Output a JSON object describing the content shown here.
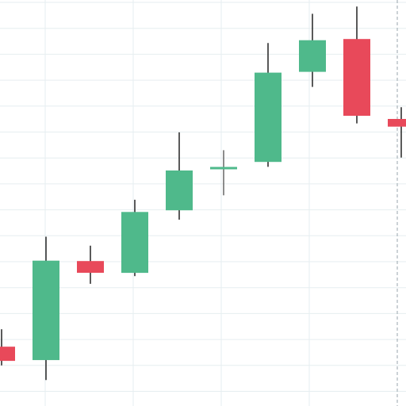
{
  "colors": {
    "background": "#ffffff",
    "grid": "#e6eef0",
    "up": "#4fb98b",
    "down": "#e8495a",
    "wick": "#222222",
    "crosshair": "#9aa6ad"
  },
  "chart_data": {
    "type": "candlestick",
    "title": "",
    "xlabel": "",
    "ylabel": "",
    "grid": true,
    "legend": "none",
    "ylim": [
      0,
      100
    ],
    "candles": [
      {
        "index": 0,
        "open": 14.6,
        "high": 18.9,
        "low": 10.0,
        "close": 11.1,
        "direction": "down"
      },
      {
        "index": 1,
        "open": 11.3,
        "high": 41.7,
        "low": 6.4,
        "close": 35.8,
        "direction": "up"
      },
      {
        "index": 2,
        "open": 35.7,
        "high": 39.5,
        "low": 30.1,
        "close": 32.8,
        "direction": "down"
      },
      {
        "index": 3,
        "open": 32.8,
        "high": 50.8,
        "low": 32.0,
        "close": 47.8,
        "direction": "up"
      },
      {
        "index": 4,
        "open": 48.2,
        "high": 67.4,
        "low": 45.9,
        "close": 58.0,
        "direction": "up"
      },
      {
        "index": 5,
        "open": 58.6,
        "high": 63.0,
        "low": 51.9,
        "close": 58.6,
        "direction": "flat"
      },
      {
        "index": 6,
        "open": 60.1,
        "high": 89.4,
        "low": 58.9,
        "close": 82.1,
        "direction": "up"
      },
      {
        "index": 7,
        "open": 82.3,
        "high": 96.6,
        "low": 78.6,
        "close": 90.1,
        "direction": "up"
      },
      {
        "index": 8,
        "open": 90.4,
        "high": 98.4,
        "low": 69.6,
        "close": 71.5,
        "direction": "down"
      },
      {
        "index": 9,
        "open": 70.7,
        "high": 73.6,
        "low": 61.2,
        "close": 68.8,
        "direction": "down"
      }
    ]
  }
}
